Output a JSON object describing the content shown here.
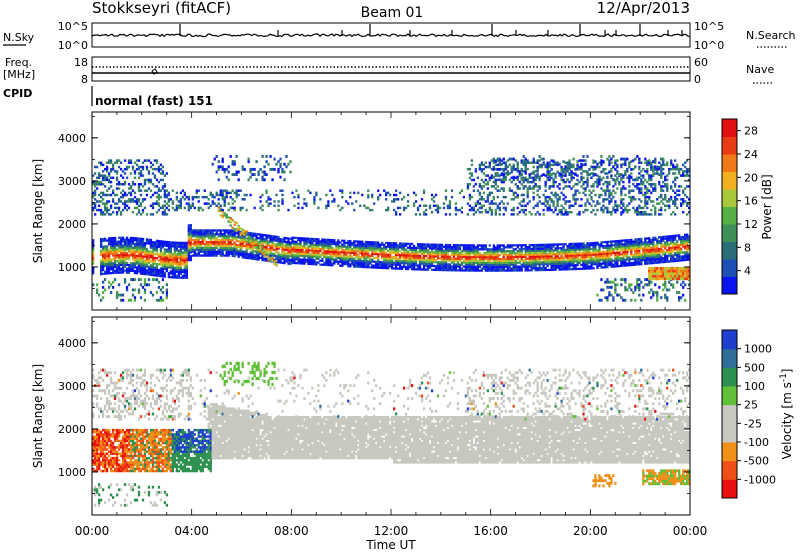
{
  "header": {
    "station": "Stokkseyri (fitACF)",
    "beam": "Beam 01",
    "date": "12/Apr/2013"
  },
  "noise_panel": {
    "left_label": "N.Sky",
    "right_label": "N.Search",
    "left_ticks": [
      "10^5",
      "10^0"
    ],
    "right_ticks": [
      "10^5",
      "10^0"
    ]
  },
  "freq_panel": {
    "left_label_top": "Freq.",
    "left_label_unit": "[MHz]",
    "right_label": "Nave",
    "left_ticks": [
      "18",
      "8"
    ],
    "right_ticks": [
      "60",
      "0"
    ]
  },
  "cpid_panel": {
    "label": "CPID",
    "value": "normal (fast) 151"
  },
  "chart_data": [
    {
      "type": "heatmap",
      "title": "",
      "xlabel": "Time UT",
      "ylabel": "Slant Range [km]",
      "x_ticks": [
        "00:00",
        "04:00",
        "08:00",
        "12:00",
        "16:00",
        "20:00",
        "00:00"
      ],
      "y_ticks": [
        1000,
        2000,
        3000,
        4000
      ],
      "xlim": [
        "00:00",
        "24:00"
      ],
      "ylim": [
        0,
        4600
      ],
      "colorbar": {
        "label": "Power [dB]",
        "ticks": [
          4,
          8,
          12,
          16,
          20,
          24,
          28
        ],
        "range": [
          0,
          30
        ],
        "colors": [
          "#0a14ee",
          "#1e4fb4",
          "#2a6f78",
          "#3f8f58",
          "#54b043",
          "#a8c83a",
          "#f0b020",
          "#f07a18",
          "#e83c14",
          "#e01010"
        ]
      },
      "features": [
        {
          "name": "main band",
          "start": "00:30",
          "end": "24:00",
          "start_range_km": 1150,
          "end_range_km": 1450,
          "peak_power_db": 28
        },
        {
          "name": "upper band",
          "start": "00:00",
          "end": "24:00",
          "range_km": [
            2200,
            3500
          ],
          "power_db": 8
        }
      ]
    },
    {
      "type": "heatmap",
      "title": "",
      "xlabel": "Time UT",
      "ylabel": "Slant Range [km]",
      "x_ticks": [
        "00:00",
        "04:00",
        "08:00",
        "12:00",
        "16:00",
        "20:00",
        "00:00"
      ],
      "y_ticks": [
        1000,
        2000,
        3000,
        4000
      ],
      "xlim": [
        "00:00",
        "24:00"
      ],
      "ylim": [
        0,
        4600
      ],
      "colorbar": {
        "label": "Velocity [m s^-1]",
        "ticks": [
          "1000",
          "500",
          "100",
          "25",
          "-25",
          "-100",
          "-500",
          "-1000"
        ],
        "colors": [
          "#1e3fcc",
          "#2f6f9a",
          "#2e9050",
          "#60c038",
          "#c8c8c0",
          "#c8c8c0",
          "#f09018",
          "#f05018",
          "#e81010"
        ]
      },
      "features": [
        {
          "name": "ground scatter band",
          "start": "05:00",
          "end": "24:00",
          "range_km": [
            1300,
            2400
          ],
          "velocity": "±25"
        },
        {
          "name": "mixed velocity patch",
          "start": "00:00",
          "end": "05:00",
          "range_km": [
            1000,
            1900
          ],
          "velocity": "-1000 to 1000"
        }
      ]
    }
  ]
}
